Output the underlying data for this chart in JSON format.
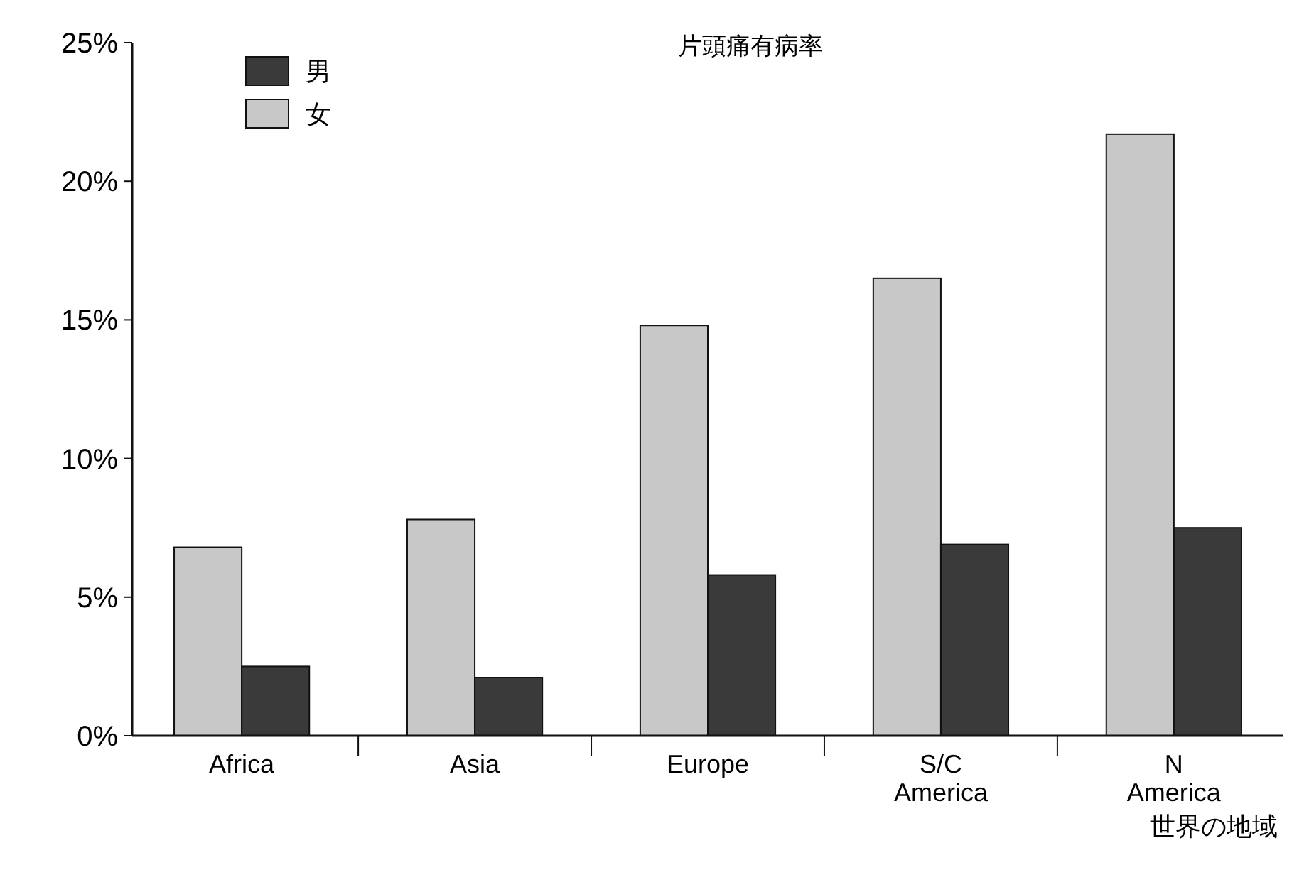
{
  "chart_data": {
    "type": "bar",
    "title": "片頭痛有病率",
    "xlabel": "世界の地域",
    "categories": [
      "Africa",
      "Asia",
      "Europe",
      "S/C\nAmerica",
      "N\nAmerica"
    ],
    "series": [
      {
        "name": "女",
        "color": "#c8c8c8",
        "values": [
          6.8,
          7.8,
          14.8,
          16.5,
          21.7
        ]
      },
      {
        "name": "男",
        "color": "#3a3a3a",
        "values": [
          2.5,
          2.1,
          5.8,
          6.9,
          7.5
        ]
      }
    ],
    "ylim": [
      0,
      25
    ],
    "yticks": [
      {
        "value": 0,
        "label": "0%"
      },
      {
        "value": 5,
        "label": "5%"
      },
      {
        "value": 10,
        "label": "10%"
      },
      {
        "value": 15,
        "label": "15%"
      },
      {
        "value": 20,
        "label": "20%"
      },
      {
        "value": 25,
        "label": "25%"
      }
    ],
    "grid": false,
    "legend": "top left"
  }
}
